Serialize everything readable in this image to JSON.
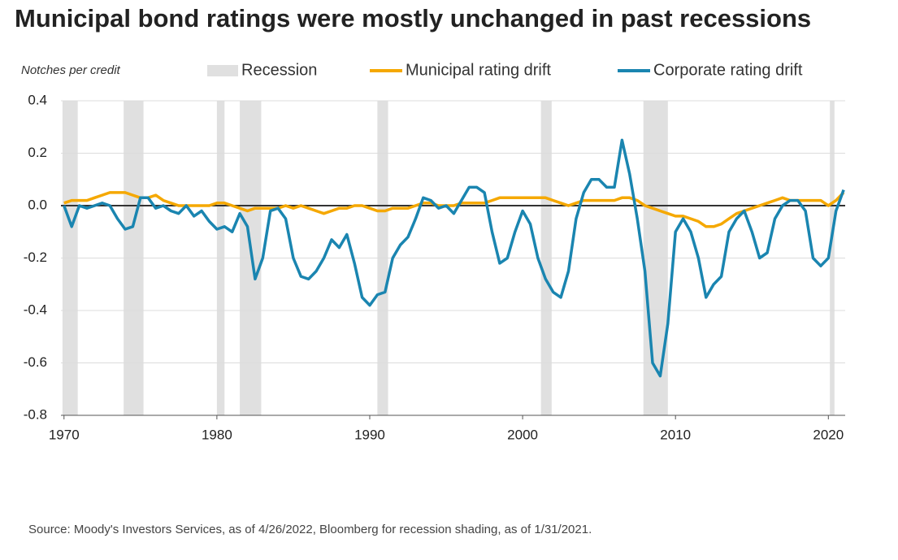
{
  "chart_data": {
    "type": "line",
    "title": "Municipal bond ratings were mostly unchanged in past recessions",
    "y_label": "Notches per credit",
    "source": "Source: Moody's Investors Services, as of 4/26/2022, Bloomberg for recession shading, as of 1/31/2021.",
    "x": [
      1970,
      1970.5,
      1971,
      1971.5,
      1972,
      1972.5,
      1973,
      1973.5,
      1974,
      1974.5,
      1975,
      1975.5,
      1976,
      1976.5,
      1977,
      1977.5,
      1978,
      1978.5,
      1979,
      1979.5,
      1980,
      1980.5,
      1981,
      1981.5,
      1982,
      1982.5,
      1983,
      1983.5,
      1984,
      1984.5,
      1985,
      1985.5,
      1986,
      1986.5,
      1987,
      1987.5,
      1988,
      1988.5,
      1989,
      1989.5,
      1990,
      1990.5,
      1991,
      1991.5,
      1992,
      1992.5,
      1993,
      1993.5,
      1994,
      1994.5,
      1995,
      1995.5,
      1996,
      1996.5,
      1997,
      1997.5,
      1998,
      1998.5,
      1999,
      1999.5,
      2000,
      2000.5,
      2001,
      2001.5,
      2002,
      2002.5,
      2003,
      2003.5,
      2004,
      2004.5,
      2005,
      2005.5,
      2006,
      2006.5,
      2007,
      2007.5,
      2008,
      2008.5,
      2009,
      2009.5,
      2010,
      2010.5,
      2011,
      2011.5,
      2012,
      2012.5,
      2013,
      2013.5,
      2014,
      2014.5,
      2015,
      2015.5,
      2016,
      2016.5,
      2017,
      2017.5,
      2018,
      2018.5,
      2019,
      2019.5,
      2020,
      2020.5,
      2021
    ],
    "recessions": {
      "name": "Recession",
      "color": "#e0e0e0",
      "spans": [
        [
          1969.9,
          1970.9
        ],
        [
          1973.9,
          1975.2
        ],
        [
          1980.0,
          1980.5
        ],
        [
          1981.5,
          1982.9
        ],
        [
          1990.5,
          1991.2
        ],
        [
          2001.2,
          2001.9
        ],
        [
          2007.9,
          2009.5
        ],
        [
          2020.1,
          2020.4
        ]
      ]
    },
    "series": [
      {
        "name": "Municipal rating drift",
        "color": "#f5a800",
        "values": [
          0.01,
          0.02,
          0.02,
          0.02,
          0.03,
          0.04,
          0.05,
          0.05,
          0.05,
          0.04,
          0.03,
          0.03,
          0.04,
          0.02,
          0.01,
          0.0,
          0.0,
          0.0,
          0.0,
          0.0,
          0.01,
          0.01,
          0.0,
          -0.01,
          -0.02,
          -0.01,
          -0.01,
          -0.01,
          -0.01,
          0.0,
          -0.01,
          0.0,
          -0.01,
          -0.02,
          -0.03,
          -0.02,
          -0.01,
          -0.01,
          0.0,
          0.0,
          -0.01,
          -0.02,
          -0.02,
          -0.01,
          -0.01,
          -0.01,
          0.0,
          0.01,
          0.01,
          0.0,
          0.0,
          0.0,
          0.01,
          0.01,
          0.01,
          0.01,
          0.02,
          0.03,
          0.03,
          0.03,
          0.03,
          0.03,
          0.03,
          0.03,
          0.02,
          0.01,
          0.0,
          0.01,
          0.02,
          0.02,
          0.02,
          0.02,
          0.02,
          0.03,
          0.03,
          0.02,
          0.0,
          -0.01,
          -0.02,
          -0.03,
          -0.04,
          -0.04,
          -0.05,
          -0.06,
          -0.08,
          -0.08,
          -0.07,
          -0.05,
          -0.03,
          -0.02,
          -0.01,
          0.0,
          0.01,
          0.02,
          0.03,
          0.02,
          0.02,
          0.02,
          0.02,
          0.02,
          0.0,
          0.02,
          0.05
        ]
      },
      {
        "name": "Corporate rating drift",
        "color": "#1a85b0",
        "values": [
          0.0,
          -0.08,
          0.0,
          -0.01,
          0.0,
          0.01,
          0.0,
          -0.05,
          -0.09,
          -0.08,
          0.03,
          0.03,
          -0.01,
          0.0,
          -0.02,
          -0.03,
          0.0,
          -0.04,
          -0.02,
          -0.06,
          -0.09,
          -0.08,
          -0.1,
          -0.03,
          -0.08,
          -0.28,
          -0.2,
          -0.02,
          -0.01,
          -0.05,
          -0.2,
          -0.27,
          -0.28,
          -0.25,
          -0.2,
          -0.13,
          -0.16,
          -0.11,
          -0.22,
          -0.35,
          -0.38,
          -0.34,
          -0.33,
          -0.2,
          -0.15,
          -0.12,
          -0.05,
          0.03,
          0.02,
          -0.01,
          0.0,
          -0.03,
          0.02,
          0.07,
          0.07,
          0.05,
          -0.1,
          -0.22,
          -0.2,
          -0.1,
          -0.02,
          -0.07,
          -0.2,
          -0.28,
          -0.33,
          -0.35,
          -0.25,
          -0.05,
          0.05,
          0.1,
          0.1,
          0.07,
          0.07,
          0.25,
          0.12,
          -0.05,
          -0.25,
          -0.6,
          -0.65,
          -0.45,
          -0.1,
          -0.05,
          -0.1,
          -0.2,
          -0.35,
          -0.3,
          -0.27,
          -0.1,
          -0.05,
          -0.02,
          -0.1,
          -0.2,
          -0.18,
          -0.05,
          0.0,
          0.02,
          0.02,
          -0.02,
          -0.2,
          -0.23,
          -0.2,
          -0.02,
          0.06
        ]
      }
    ],
    "xlim": [
      1969.8,
      2021.1
    ],
    "ylim": [
      -0.8,
      0.4
    ],
    "xticks": [
      1970,
      1980,
      1990,
      2000,
      2010,
      2020
    ],
    "yticks": [
      0.4,
      0.2,
      {
        "value": 0,
        "label": "0.0"
      },
      -0.2,
      -0.4,
      -0.6,
      -0.8
    ],
    "grid": true
  }
}
